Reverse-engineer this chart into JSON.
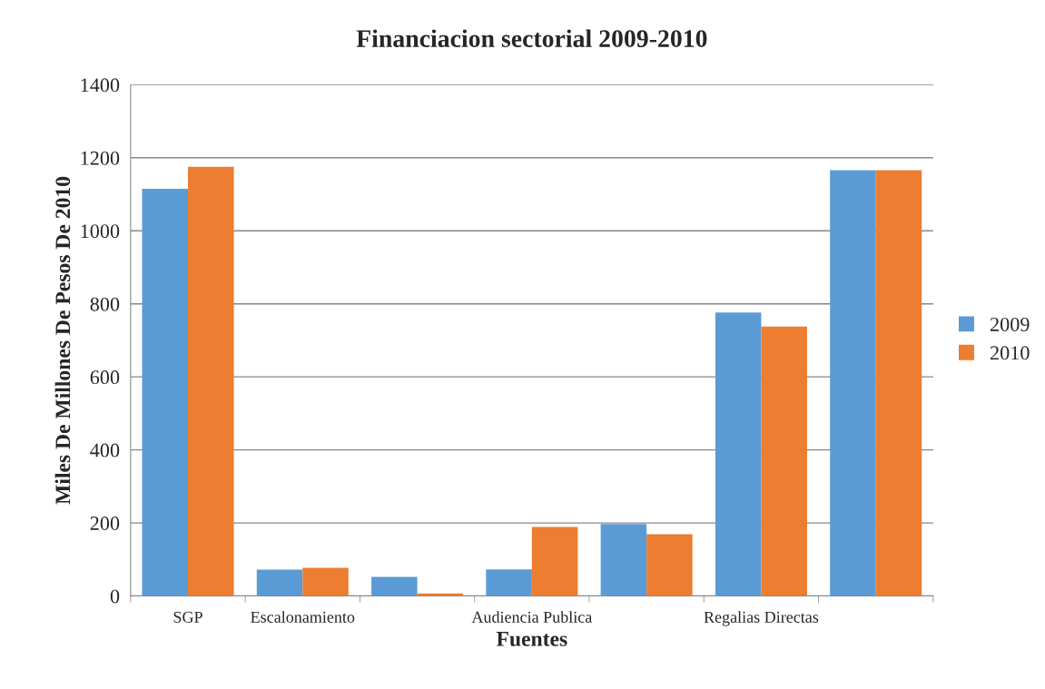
{
  "chart_data": {
    "type": "bar",
    "title": "Financiacion sectorial 2009-2010",
    "xlabel": "Fuentes",
    "ylabel": "Miles De Millones De Pesos De 2010",
    "categories": [
      "SGP",
      "Escalonamiento",
      null,
      "Audiencia Publica",
      null,
      "Regalias Directas",
      null
    ],
    "series": [
      {
        "name": "2009",
        "color": "#5b9bd5",
        "values": [
          1115,
          72,
          52,
          73,
          197,
          776,
          1166
        ]
      },
      {
        "name": "2010",
        "color": "#ed7d31",
        "values": [
          1175,
          77,
          7,
          189,
          169,
          738,
          1166
        ]
      }
    ],
    "ylim": [
      0,
      1400
    ],
    "yticks": [
      0,
      200,
      400,
      600,
      800,
      1000,
      1200,
      1400
    ],
    "grid": "y",
    "legend": "right"
  }
}
